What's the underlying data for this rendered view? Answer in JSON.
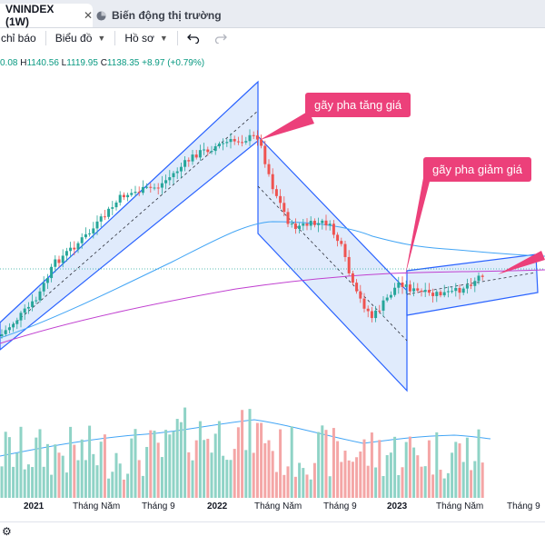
{
  "tabs": [
    {
      "label": "VNINDEX (1W)",
      "close": "✕"
    },
    {
      "label": "Biến động thị trường"
    }
  ],
  "toolbar": {
    "indicators": "chỉ báo",
    "chart": "Biểu đồ",
    "profile": "Hồ sơ",
    "undo_icon": "undo-icon",
    "redo_icon": "redo-icon"
  },
  "ohlc": {
    "open_part": "0.08",
    "high_label": "H",
    "high": "1140.56",
    "low_label": "L",
    "low": "1119.95",
    "close_label": "C",
    "close": "1138.35",
    "change": "+8.97 (+0.79%)"
  },
  "annotations": {
    "break_up": "gãy pha tăng giá",
    "break_down": "gãy pha giảm giá"
  },
  "xaxis": [
    {
      "label": "2021",
      "bold": true
    },
    {
      "label": "Tháng Năm",
      "bold": false
    },
    {
      "label": "Tháng 9",
      "bold": false
    },
    {
      "label": "2022",
      "bold": true
    },
    {
      "label": "Tháng Năm",
      "bold": false
    },
    {
      "label": "Tháng 9",
      "bold": false
    },
    {
      "label": "2023",
      "bold": true
    },
    {
      "label": "Tháng Năm",
      "bold": false
    },
    {
      "label": "Tháng 9",
      "bold": false
    }
  ],
  "colors": {
    "up": "#26a69a",
    "down": "#ef5350",
    "volume_up": "#8fd3c6",
    "volume_down": "#f4a6a6",
    "channel_fill": "#cfe0fa",
    "channel_line": "#2962ff",
    "ma_blue": "#42a5f5",
    "ma_purple": "#c040d0",
    "annotation": "#ec407a"
  }
}
